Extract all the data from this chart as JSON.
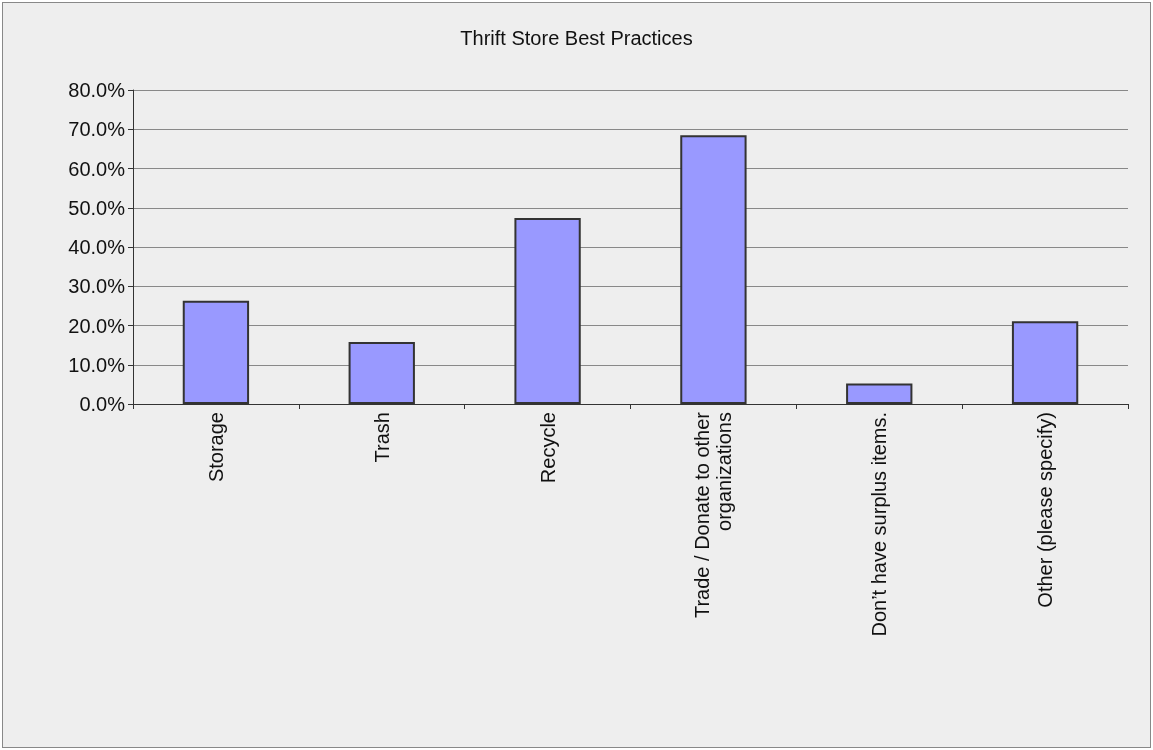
{
  "chart_data": {
    "type": "bar",
    "title": "Thrift Store Best Practices",
    "categories": [
      "Storage",
      "Trash",
      "Recycle",
      "Trade / Donate to other organizations",
      "Don’t have surplus items.",
      "Other (please specify)"
    ],
    "values": [
      26.3,
      15.8,
      47.4,
      68.5,
      5.2,
      21.1
    ],
    "color": "#9999ff",
    "ylim": [
      0,
      80
    ],
    "yticks": [
      {
        "value": 0,
        "label": "0.0%"
      },
      {
        "value": 10,
        "label": "10.0%"
      },
      {
        "value": 20,
        "label": "20.0%"
      },
      {
        "value": 30,
        "label": "30.0%"
      },
      {
        "value": 40,
        "label": "40.0%"
      },
      {
        "value": 50,
        "label": "50.0%"
      },
      {
        "value": 60,
        "label": "60.0%"
      },
      {
        "value": 70,
        "label": "70.0%"
      },
      {
        "value": 80,
        "label": "80.0%"
      }
    ],
    "grid": "y"
  }
}
